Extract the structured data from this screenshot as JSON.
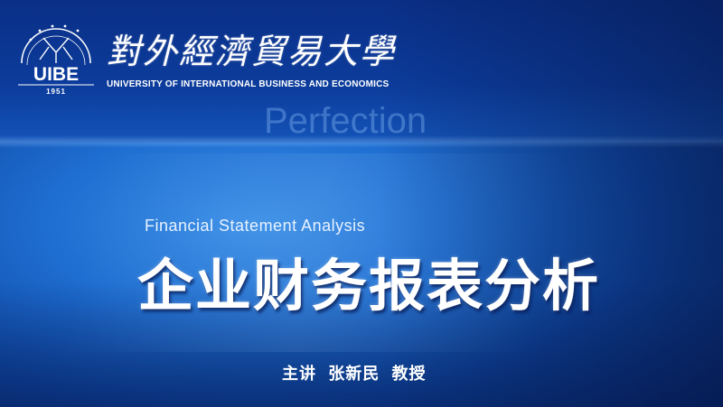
{
  "logo": {
    "letters": "UIBE",
    "year": "1951",
    "icon": "university-emblem-icon"
  },
  "university": {
    "name_cn": "對外經濟貿易大學",
    "name_en": "UNIVERSITY OF INTERNATIONAL BUSINESS AND ECONOMICS"
  },
  "background": {
    "word_1": "Perfection"
  },
  "course": {
    "title_en": "Financial Statement Analysis",
    "title_cn": "企业财务报表分析",
    "lecturer": "主讲 张新民 教授"
  },
  "colors": {
    "background": "#1f6fd2",
    "top_band": "#0c3c9c",
    "text": "#ffffff"
  }
}
